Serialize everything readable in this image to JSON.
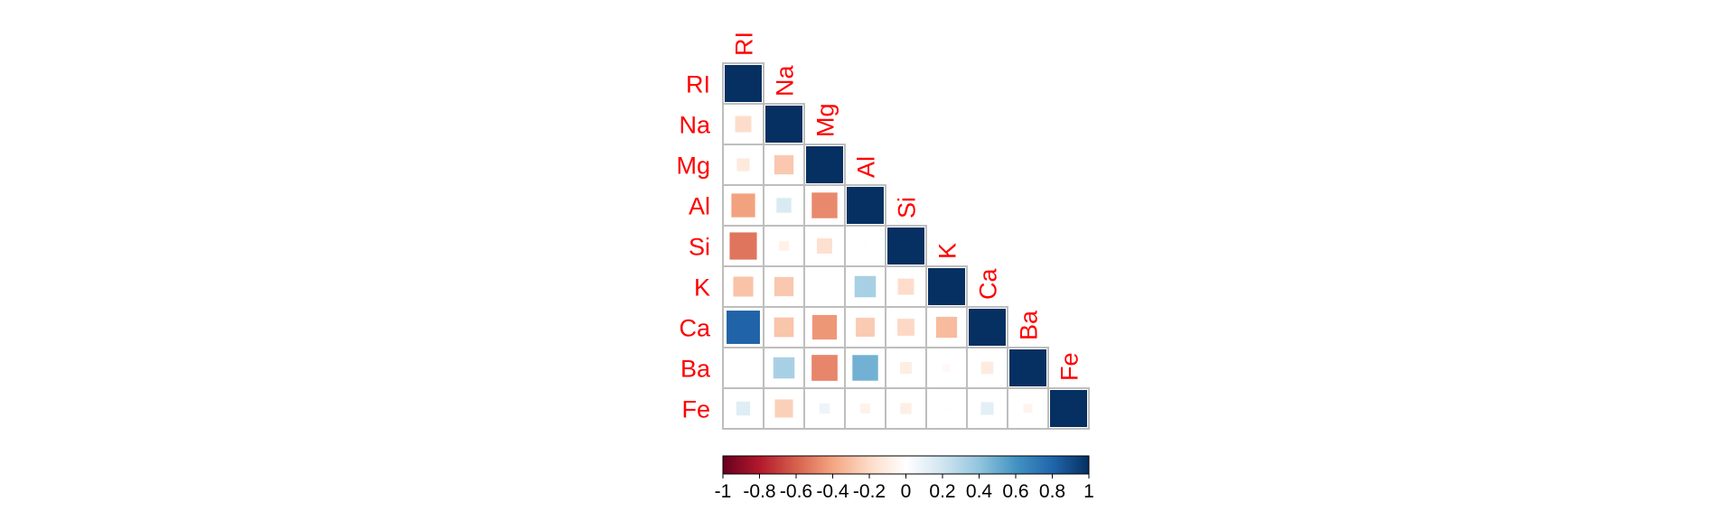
{
  "chart_data": {
    "type": "heatmap",
    "variables": [
      "RI",
      "Na",
      "Mg",
      "Al",
      "Si",
      "K",
      "Ca",
      "Ba",
      "Fe"
    ],
    "matrix": [
      [
        1.0,
        -0.19,
        -0.12,
        -0.41,
        -0.54,
        -0.29,
        0.81,
        -0.0,
        0.14
      ],
      [
        -0.19,
        1.0,
        -0.27,
        0.16,
        -0.07,
        -0.27,
        -0.28,
        0.33,
        -0.24
      ],
      [
        -0.12,
        -0.27,
        1.0,
        -0.48,
        -0.17,
        0.01,
        -0.44,
        -0.49,
        0.08
      ],
      [
        -0.41,
        0.16,
        -0.48,
        1.0,
        -0.01,
        0.33,
        -0.26,
        0.48,
        -0.07
      ],
      [
        -0.54,
        -0.07,
        -0.17,
        -0.01,
        1.0,
        -0.19,
        -0.21,
        -0.1,
        -0.09
      ],
      [
        -0.29,
        -0.27,
        0.01,
        0.33,
        -0.19,
        1.0,
        -0.32,
        -0.04,
        -0.01
      ],
      [
        0.81,
        -0.28,
        -0.44,
        -0.26,
        -0.21,
        -0.32,
        1.0,
        -0.11,
        0.12
      ],
      [
        -0.0,
        0.33,
        -0.49,
        0.48,
        -0.1,
        -0.04,
        -0.11,
        1.0,
        -0.06
      ],
      [
        0.14,
        -0.24,
        0.08,
        -0.07,
        -0.09,
        -0.01,
        0.12,
        -0.06,
        1.0
      ]
    ],
    "shape": "square",
    "layout": "lower triangle",
    "colorbar": {
      "range": [
        -1,
        1
      ],
      "ticks": [
        "-1",
        "-0.8",
        "-0.6",
        "-0.4",
        "-0.2",
        "0",
        "0.2",
        "0.4",
        "0.6",
        "0.8",
        "1"
      ],
      "colors": [
        "#67001F",
        "#B2182B",
        "#D6604D",
        "#F4A582",
        "#FDDBC7",
        "#FFFFFF",
        "#D1E5F0",
        "#92C5DE",
        "#4393C3",
        "#2166AC",
        "#053061"
      ]
    }
  }
}
